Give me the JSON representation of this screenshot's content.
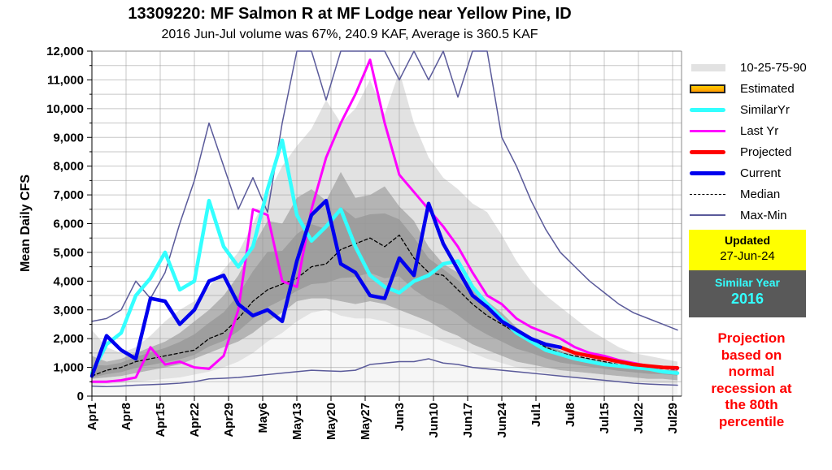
{
  "title": "13309220: MF Salmon R at MF Lodge near Yellow Pine, ID",
  "subtitle": "2016 Jun-Jul volume was 67%, 240.9 KAF, Average is 360.5 KAF",
  "legend": {
    "items": [
      {
        "key": "band",
        "label": "10-25-75-90"
      },
      {
        "key": "estimated",
        "label": "Estimated"
      },
      {
        "key": "similar",
        "label": "SimilarYr"
      },
      {
        "key": "lastyr",
        "label": "Last Yr"
      },
      {
        "key": "projected",
        "label": "Projected"
      },
      {
        "key": "current",
        "label": "Current"
      },
      {
        "key": "median",
        "label": "Median"
      },
      {
        "key": "maxmin",
        "label": "Max-Min"
      }
    ]
  },
  "updated": {
    "label": "Updated",
    "date": "27-Jun-24"
  },
  "similar_year": {
    "label": "Similar Year",
    "year": "2016"
  },
  "projection_note": [
    "Projection",
    "based on",
    "normal",
    "recession at",
    "the 80th",
    "percentile"
  ],
  "colors": {
    "similar": "#33ffff",
    "lastyr": "#ff00ff",
    "projected": "#ff0000",
    "current": "#0000ee",
    "median": "#000000",
    "maxmin": "#5a5a9a",
    "p10_90": "#e2e2e2",
    "p25_75": "#b4b4b4",
    "inner": "#9e9e9e",
    "below10": "#f6f6f6"
  },
  "chart_data": {
    "type": "line",
    "title": "13309220: MF Salmon R at MF Lodge near Yellow Pine, ID",
    "subtitle": "2016 Jun-Jul volume was 67%, 240.9 KAF, Average is 360.5 KAF",
    "xlabel": "",
    "ylabel": "Mean Daily CFS",
    "ylim": [
      0,
      12000
    ],
    "yticks": [
      0,
      1000,
      2000,
      3000,
      4000,
      5000,
      6000,
      7000,
      8000,
      9000,
      10000,
      11000,
      12000
    ],
    "ytick_labels": [
      "0",
      "1,000",
      "2,000",
      "3,000",
      "4,000",
      "5,000",
      "6,000",
      "7,000",
      "8,000",
      "9,000",
      "10,000",
      "11,000",
      "12,000"
    ],
    "xlim_days": [
      0,
      121
    ],
    "xticks_days": [
      0,
      7,
      14,
      21,
      28,
      35,
      42,
      49,
      56,
      63,
      70,
      77,
      84,
      91,
      98,
      105,
      112,
      119
    ],
    "xtick_labels": [
      "Apr1",
      "Apr8",
      "Apr15",
      "Apr22",
      "Apr29",
      "May6",
      "May13",
      "May20",
      "May27",
      "Jun3",
      "Jun10",
      "Jun17",
      "Jun24",
      "Jul1",
      "Jul8",
      "Jul15",
      "Jul22",
      "Jul29"
    ],
    "grid": true,
    "legend_position": "right",
    "x_days": [
      0,
      3,
      6,
      9,
      12,
      15,
      18,
      21,
      24,
      27,
      30,
      33,
      36,
      39,
      42,
      45,
      48,
      51,
      54,
      57,
      60,
      63,
      66,
      69,
      72,
      75,
      78,
      81,
      84,
      87,
      90,
      93,
      96,
      99,
      102,
      105,
      108,
      111,
      114,
      117,
      120
    ],
    "series": [
      {
        "name": "P90",
        "values": [
          2300,
          1700,
          1500,
          1700,
          2100,
          2600,
          3000,
          3300,
          3800,
          4400,
          5000,
          6000,
          7000,
          8000,
          8700,
          9300,
          10300,
          9500,
          10000,
          11000,
          9800,
          11300,
          9500,
          8300,
          7600,
          7200,
          6700,
          6400,
          5600,
          4700,
          4000,
          3500,
          3100,
          2700,
          2300,
          2000,
          1700,
          1500,
          1400,
          1300,
          1200
        ]
      },
      {
        "name": "P75",
        "values": [
          1400,
          1200,
          1300,
          1500,
          1700,
          1900,
          2200,
          2600,
          3000,
          3500,
          4200,
          5200,
          6100,
          6000,
          6900,
          7200,
          6800,
          7800,
          6900,
          7000,
          7300,
          6600,
          6100,
          5200,
          4600,
          4300,
          3800,
          3300,
          2900,
          2400,
          2000,
          1800,
          1600,
          1400,
          1300,
          1200,
          1100,
          1000,
          1000,
          900,
          900
        ]
      },
      {
        "name": "P25",
        "values": [
          600,
          650,
          700,
          800,
          900,
          1000,
          1100,
          1300,
          1500,
          1700,
          1900,
          2200,
          2600,
          2900,
          3300,
          3400,
          3400,
          3300,
          3200,
          3300,
          3200,
          3000,
          2800,
          2600,
          2300,
          2100,
          1800,
          1600,
          1400,
          1200,
          1100,
          1000,
          900,
          850,
          800,
          750,
          700,
          650,
          600,
          600,
          550
        ]
      },
      {
        "name": "P10",
        "values": [
          400,
          420,
          450,
          500,
          550,
          600,
          650,
          750,
          850,
          1000,
          1200,
          1500,
          1900,
          2200,
          2600,
          2900,
          3000,
          2800,
          2700,
          2700,
          2600,
          2400,
          2300,
          2100,
          1900,
          1700,
          1500,
          1300,
          1150,
          1000,
          900,
          800,
          700,
          650,
          600,
          550,
          520,
          500,
          470,
          450,
          430
        ]
      },
      {
        "name": "Median",
        "values": [
          700,
          900,
          1000,
          1200,
          1300,
          1400,
          1500,
          1600,
          2000,
          2200,
          2700,
          3300,
          3700,
          3900,
          4100,
          4500,
          4600,
          5100,
          5300,
          5500,
          5200,
          5600,
          4800,
          4300,
          4200,
          3700,
          3200,
          2800,
          2500,
          2200,
          2000,
          1700,
          1500,
          1400,
          1300,
          1200,
          1100,
          1050,
          1000,
          950,
          920
        ]
      },
      {
        "name": "Max",
        "values": [
          2600,
          2700,
          3000,
          4000,
          3400,
          4300,
          6000,
          7500,
          9500,
          8000,
          6500,
          7600,
          6400,
          9500,
          14000,
          12500,
          10300,
          12500,
          15000,
          13000,
          14000,
          11000,
          13000,
          11000,
          14000,
          10400,
          15000,
          12500,
          9000,
          8000,
          6800,
          5800,
          5000,
          4500,
          4000,
          3600,
          3200,
          2900,
          2700,
          2500,
          2300
        ]
      },
      {
        "name": "Min",
        "values": [
          350,
          330,
          350,
          380,
          400,
          420,
          450,
          500,
          600,
          620,
          650,
          700,
          750,
          800,
          850,
          900,
          880,
          860,
          900,
          1100,
          1150,
          1200,
          1200,
          1300,
          1150,
          1100,
          1000,
          950,
          900,
          850,
          800,
          750,
          700,
          650,
          600,
          550,
          500,
          450,
          420,
          400,
          380
        ]
      },
      {
        "name": "SimilarYr",
        "values": [
          800,
          1800,
          2200,
          3500,
          4100,
          5000,
          3700,
          4000,
          6800,
          5200,
          4500,
          5200,
          7200,
          8900,
          6300,
          5400,
          5900,
          6500,
          5200,
          4200,
          3800,
          3600,
          4000,
          4200,
          4600,
          4700,
          3800,
          3200,
          2700,
          2200,
          1900,
          1600,
          1450,
          1300,
          1200,
          1100,
          1050,
          1000,
          950,
          850,
          800
        ]
      },
      {
        "name": "Last Yr",
        "values": [
          500,
          500,
          550,
          650,
          1700,
          1100,
          1200,
          1000,
          950,
          1400,
          3000,
          6500,
          6300,
          4000,
          3800,
          6500,
          8300,
          9500,
          10500,
          11700,
          9500,
          7700,
          7100,
          6500,
          5900,
          5200,
          4300,
          3500,
          3200,
          2700,
          2400,
          2200,
          2000,
          1700,
          1500,
          1400,
          1250,
          1150,
          1050,
          1000,
          950
        ]
      },
      {
        "name": "Current",
        "values": [
          700,
          2100,
          1600,
          1300,
          3400,
          3300,
          2500,
          3000,
          4000,
          4200,
          3200,
          2800,
          3000,
          2600,
          4700,
          6300,
          6800,
          4600,
          4300,
          3500,
          3400,
          4800,
          4200,
          6700,
          5300,
          4400,
          3500,
          3100,
          2600,
          2300,
          2000,
          1800,
          1700
        ]
      },
      {
        "name": "Projected",
        "values": [
          null,
          null,
          null,
          null,
          null,
          null,
          null,
          null,
          null,
          null,
          null,
          null,
          null,
          null,
          null,
          null,
          null,
          null,
          null,
          null,
          null,
          null,
          null,
          null,
          null,
          null,
          null,
          null,
          null,
          null,
          null,
          null,
          1700,
          1500,
          1400,
          1300,
          1200,
          1100,
          1050,
          1000,
          980
        ]
      }
    ]
  }
}
